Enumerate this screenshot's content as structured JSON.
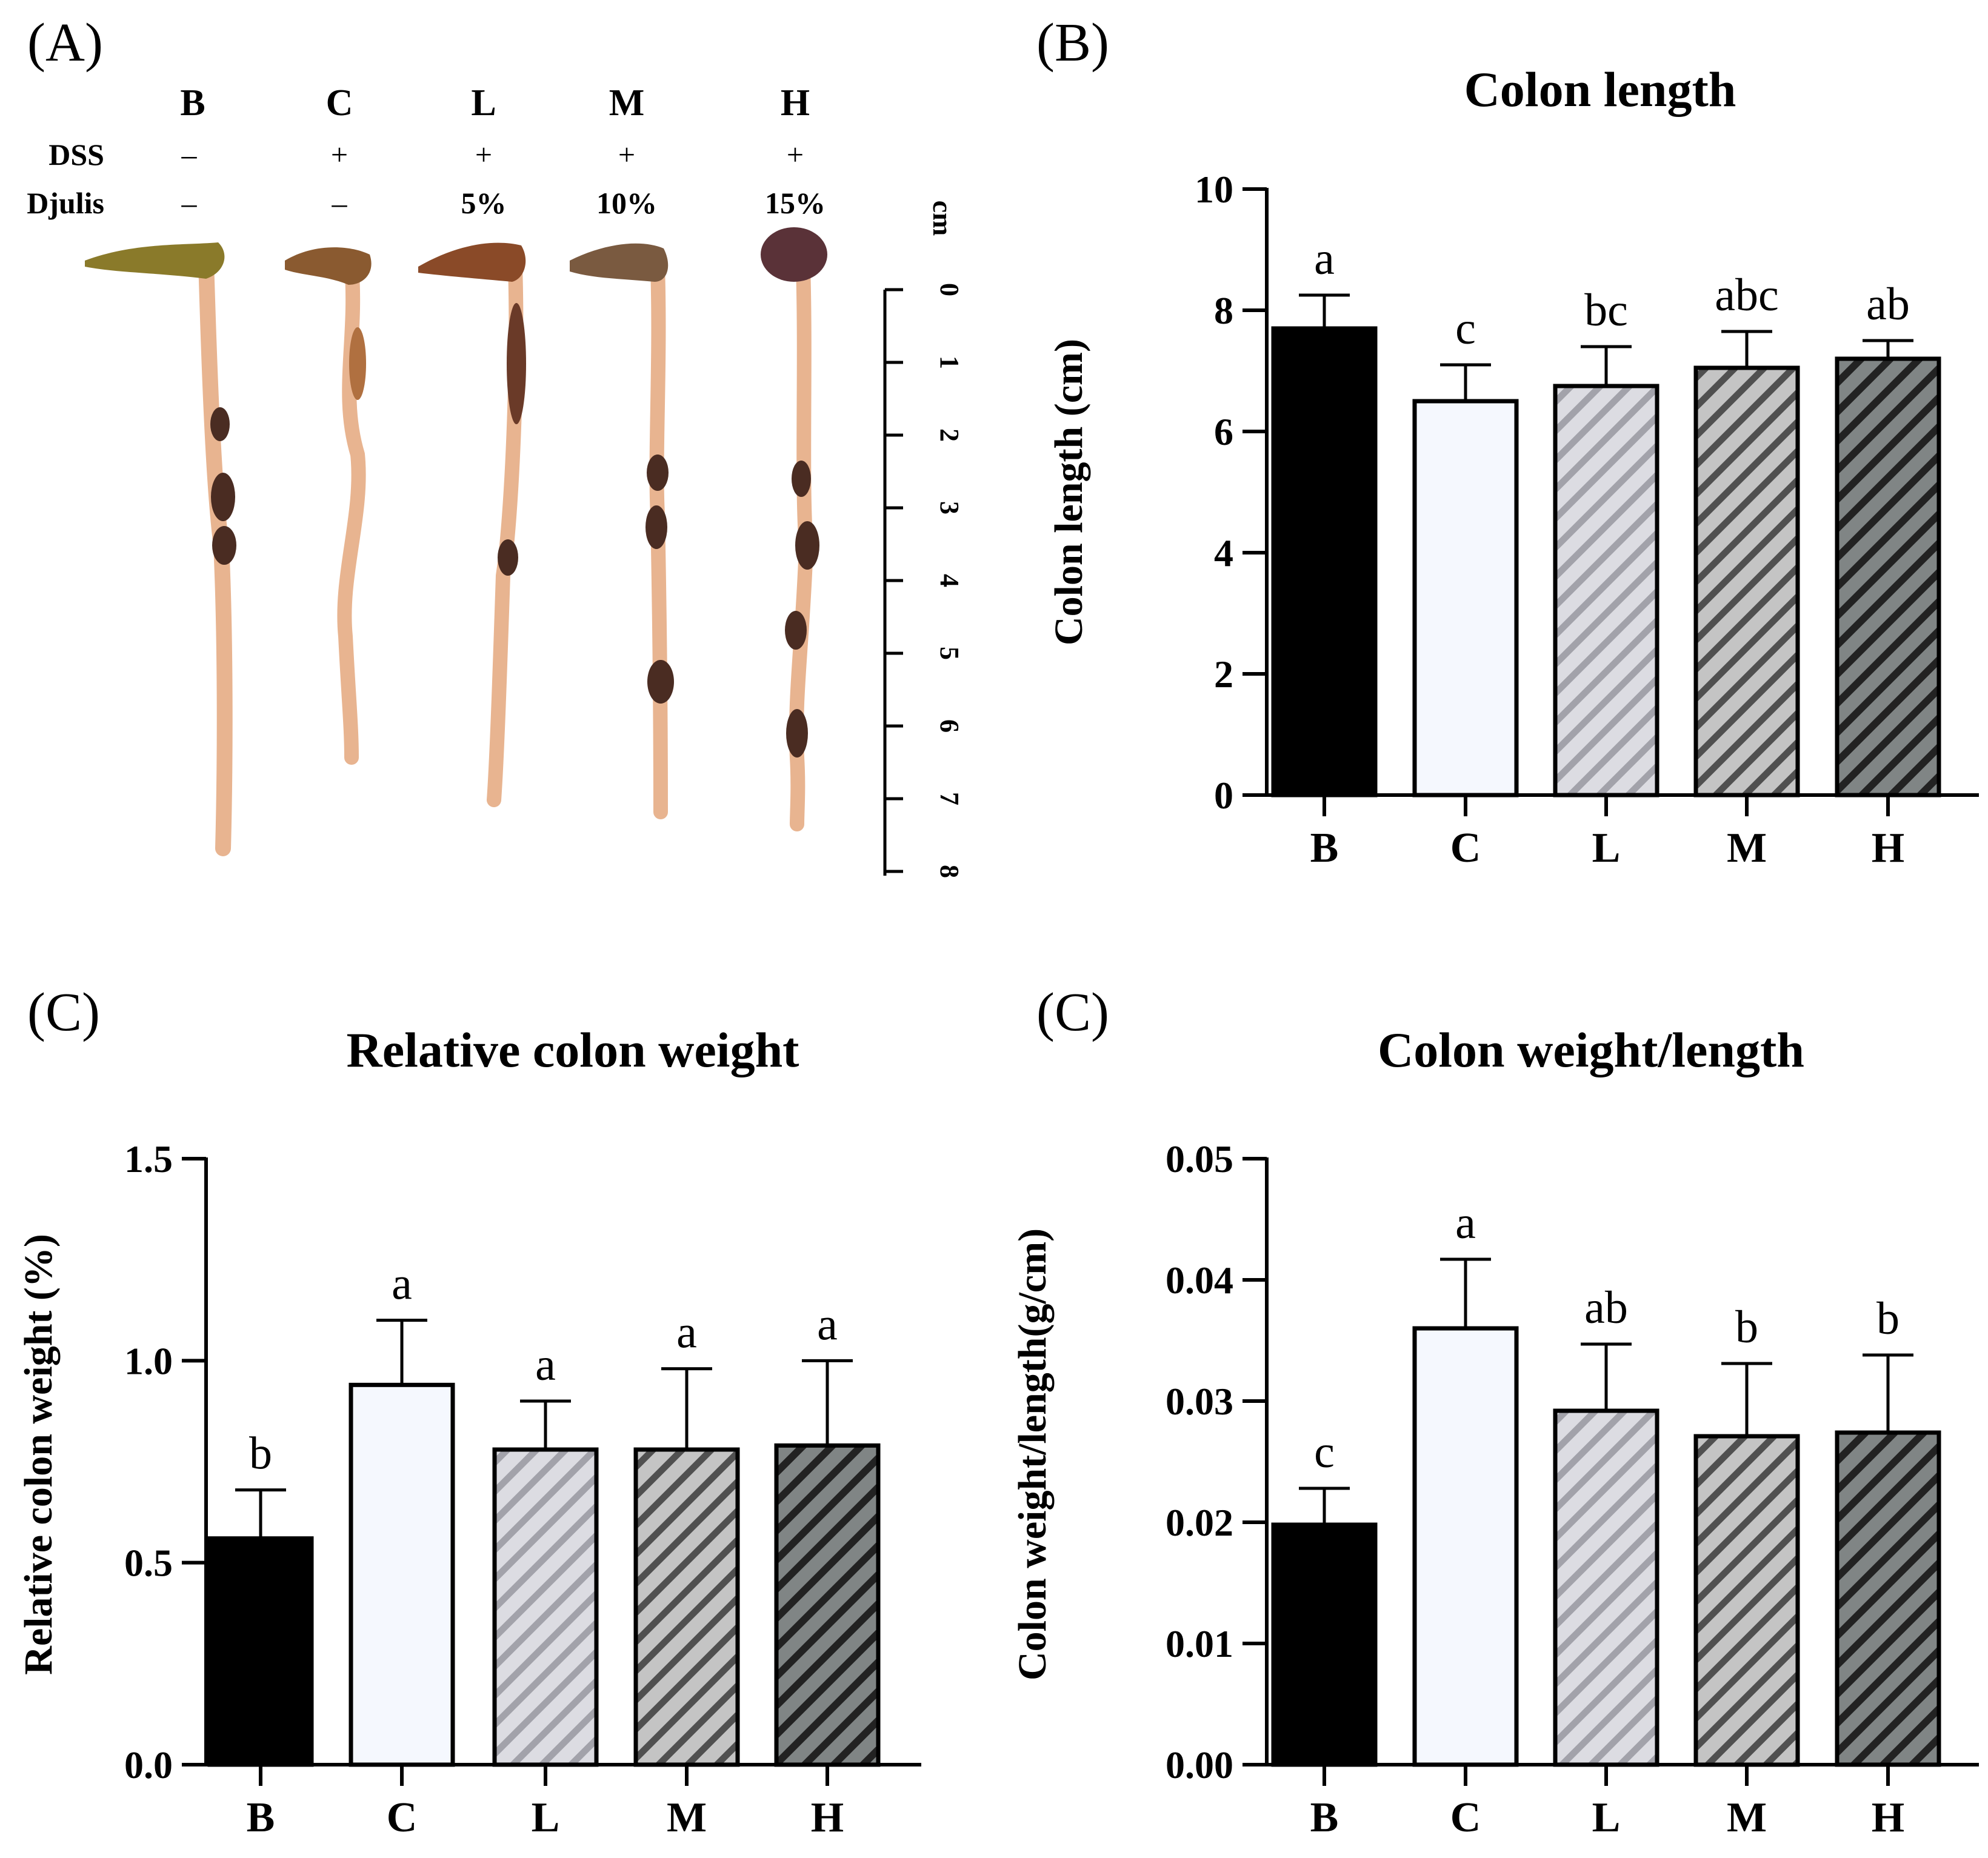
{
  "panel_a": {
    "label": "(A)",
    "groups": [
      "B",
      "C",
      "L",
      "M",
      "H"
    ],
    "rows": [
      {
        "name": "DSS",
        "values": [
          "–",
          "+",
          "+",
          "+",
          "+"
        ]
      },
      {
        "name": "Djulis",
        "values": [
          "–",
          "–",
          "5%",
          "10%",
          "15%"
        ]
      }
    ],
    "ruler": {
      "unit": "cm",
      "ticks": [
        "0",
        "1",
        "2",
        "3",
        "4",
        "5",
        "6",
        "7",
        "8"
      ]
    }
  },
  "chart_data": [
    {
      "id": "b",
      "panel_label": "(B)",
      "type": "bar",
      "title": "Colon length",
      "ylabel": "Colon length (cm)",
      "xlabel": "",
      "categories": [
        "B",
        "C",
        "L",
        "M",
        "H"
      ],
      "values": [
        7.7,
        6.5,
        6.75,
        7.05,
        7.2
      ],
      "errors": [
        0.55,
        0.6,
        0.65,
        0.6,
        0.3
      ],
      "significance": [
        "a",
        "c",
        "bc",
        "abc",
        "ab"
      ],
      "ylim": [
        0,
        10
      ],
      "yticks": [
        "0",
        "2",
        "4",
        "6",
        "8",
        "10"
      ],
      "fills": [
        "solid-black",
        "light",
        "hatch-light",
        "hatch-mid",
        "hatch-dark"
      ]
    },
    {
      "id": "c1",
      "panel_label": "(C)",
      "type": "bar",
      "title": "Relative colon weight",
      "ylabel": "Relative colon weight (%)",
      "xlabel": "",
      "categories": [
        "B",
        "C",
        "L",
        "M",
        "H"
      ],
      "values": [
        0.56,
        0.94,
        0.78,
        0.78,
        0.79
      ],
      "errors": [
        0.12,
        0.16,
        0.12,
        0.2,
        0.21
      ],
      "significance": [
        "b",
        "a",
        "a",
        "a",
        "a"
      ],
      "ylim": [
        0,
        1.5
      ],
      "yticks": [
        "0.0",
        "0.5",
        "1.0",
        "1.5"
      ],
      "fills": [
        "solid-black",
        "light",
        "hatch-light",
        "hatch-mid",
        "hatch-dark"
      ]
    },
    {
      "id": "c2",
      "panel_label": "(C)",
      "type": "bar",
      "title": "Colon weight/length",
      "ylabel": "Colon weight/length(g/cm)",
      "xlabel": "",
      "categories": [
        "B",
        "C",
        "L",
        "M",
        "H"
      ],
      "values": [
        0.0198,
        0.036,
        0.0292,
        0.0271,
        0.0274
      ],
      "errors": [
        0.003,
        0.0057,
        0.0055,
        0.006,
        0.0064
      ],
      "significance": [
        "c",
        "a",
        "ab",
        "b",
        "b"
      ],
      "ylim": [
        0,
        0.05
      ],
      "yticks": [
        "0.00",
        "0.01",
        "0.02",
        "0.03",
        "0.04",
        "0.05"
      ],
      "fills": [
        "solid-black",
        "light",
        "hatch-light",
        "hatch-mid",
        "hatch-dark"
      ]
    }
  ],
  "colors": {
    "black": "#000000",
    "light_fill": "#f5f8fe",
    "hatch_light_bg": "#dcdce2",
    "hatch_light_line": "#a2a2aa",
    "hatch_mid_bg": "#c4c4c4",
    "hatch_mid_line": "#505050",
    "hatch_dark_bg": "#808585",
    "hatch_dark_line": "#222222",
    "colon_tissue": "#e8b490",
    "colon_dark": "#4a2c22",
    "colon_cap": "#8a7a2a"
  }
}
